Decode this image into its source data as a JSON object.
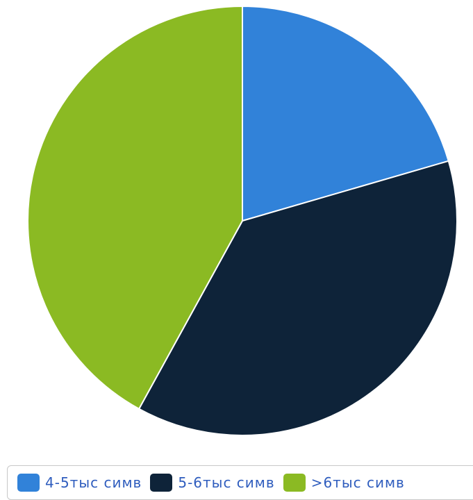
{
  "chart_data": {
    "type": "pie",
    "categories": [
      "4-5тыс симв",
      "5-6тыс симв",
      ">6тыс симв"
    ],
    "values": [
      20.5,
      37.5,
      42.0
    ],
    "colors": [
      "#3182d9",
      "#0e2339",
      "#8bba23"
    ],
    "start_angle_deg": 0,
    "direction": "clockwise",
    "legend_position": "bottom"
  }
}
